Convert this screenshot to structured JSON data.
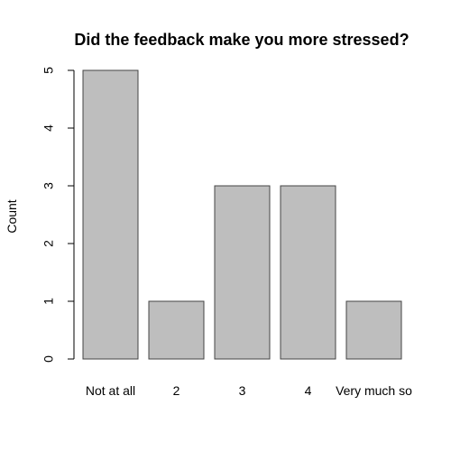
{
  "chart_data": {
    "type": "bar",
    "title": "Did the feedback make you more stressed?",
    "xlabel": "",
    "ylabel": "Count",
    "categories": [
      "Not at all",
      "2",
      "3",
      "4",
      "Very much so"
    ],
    "values": [
      5,
      1,
      3,
      3,
      1
    ],
    "ylim": [
      0,
      5
    ],
    "yticks": [
      "0",
      "1",
      "2",
      "3",
      "4",
      "5"
    ],
    "grid": false,
    "legend": "none",
    "colors": {
      "bar_fill": "#bebebe",
      "bar_stroke": "#444444",
      "axis": "#000000",
      "text": "#000000",
      "background": "#ffffff"
    }
  }
}
